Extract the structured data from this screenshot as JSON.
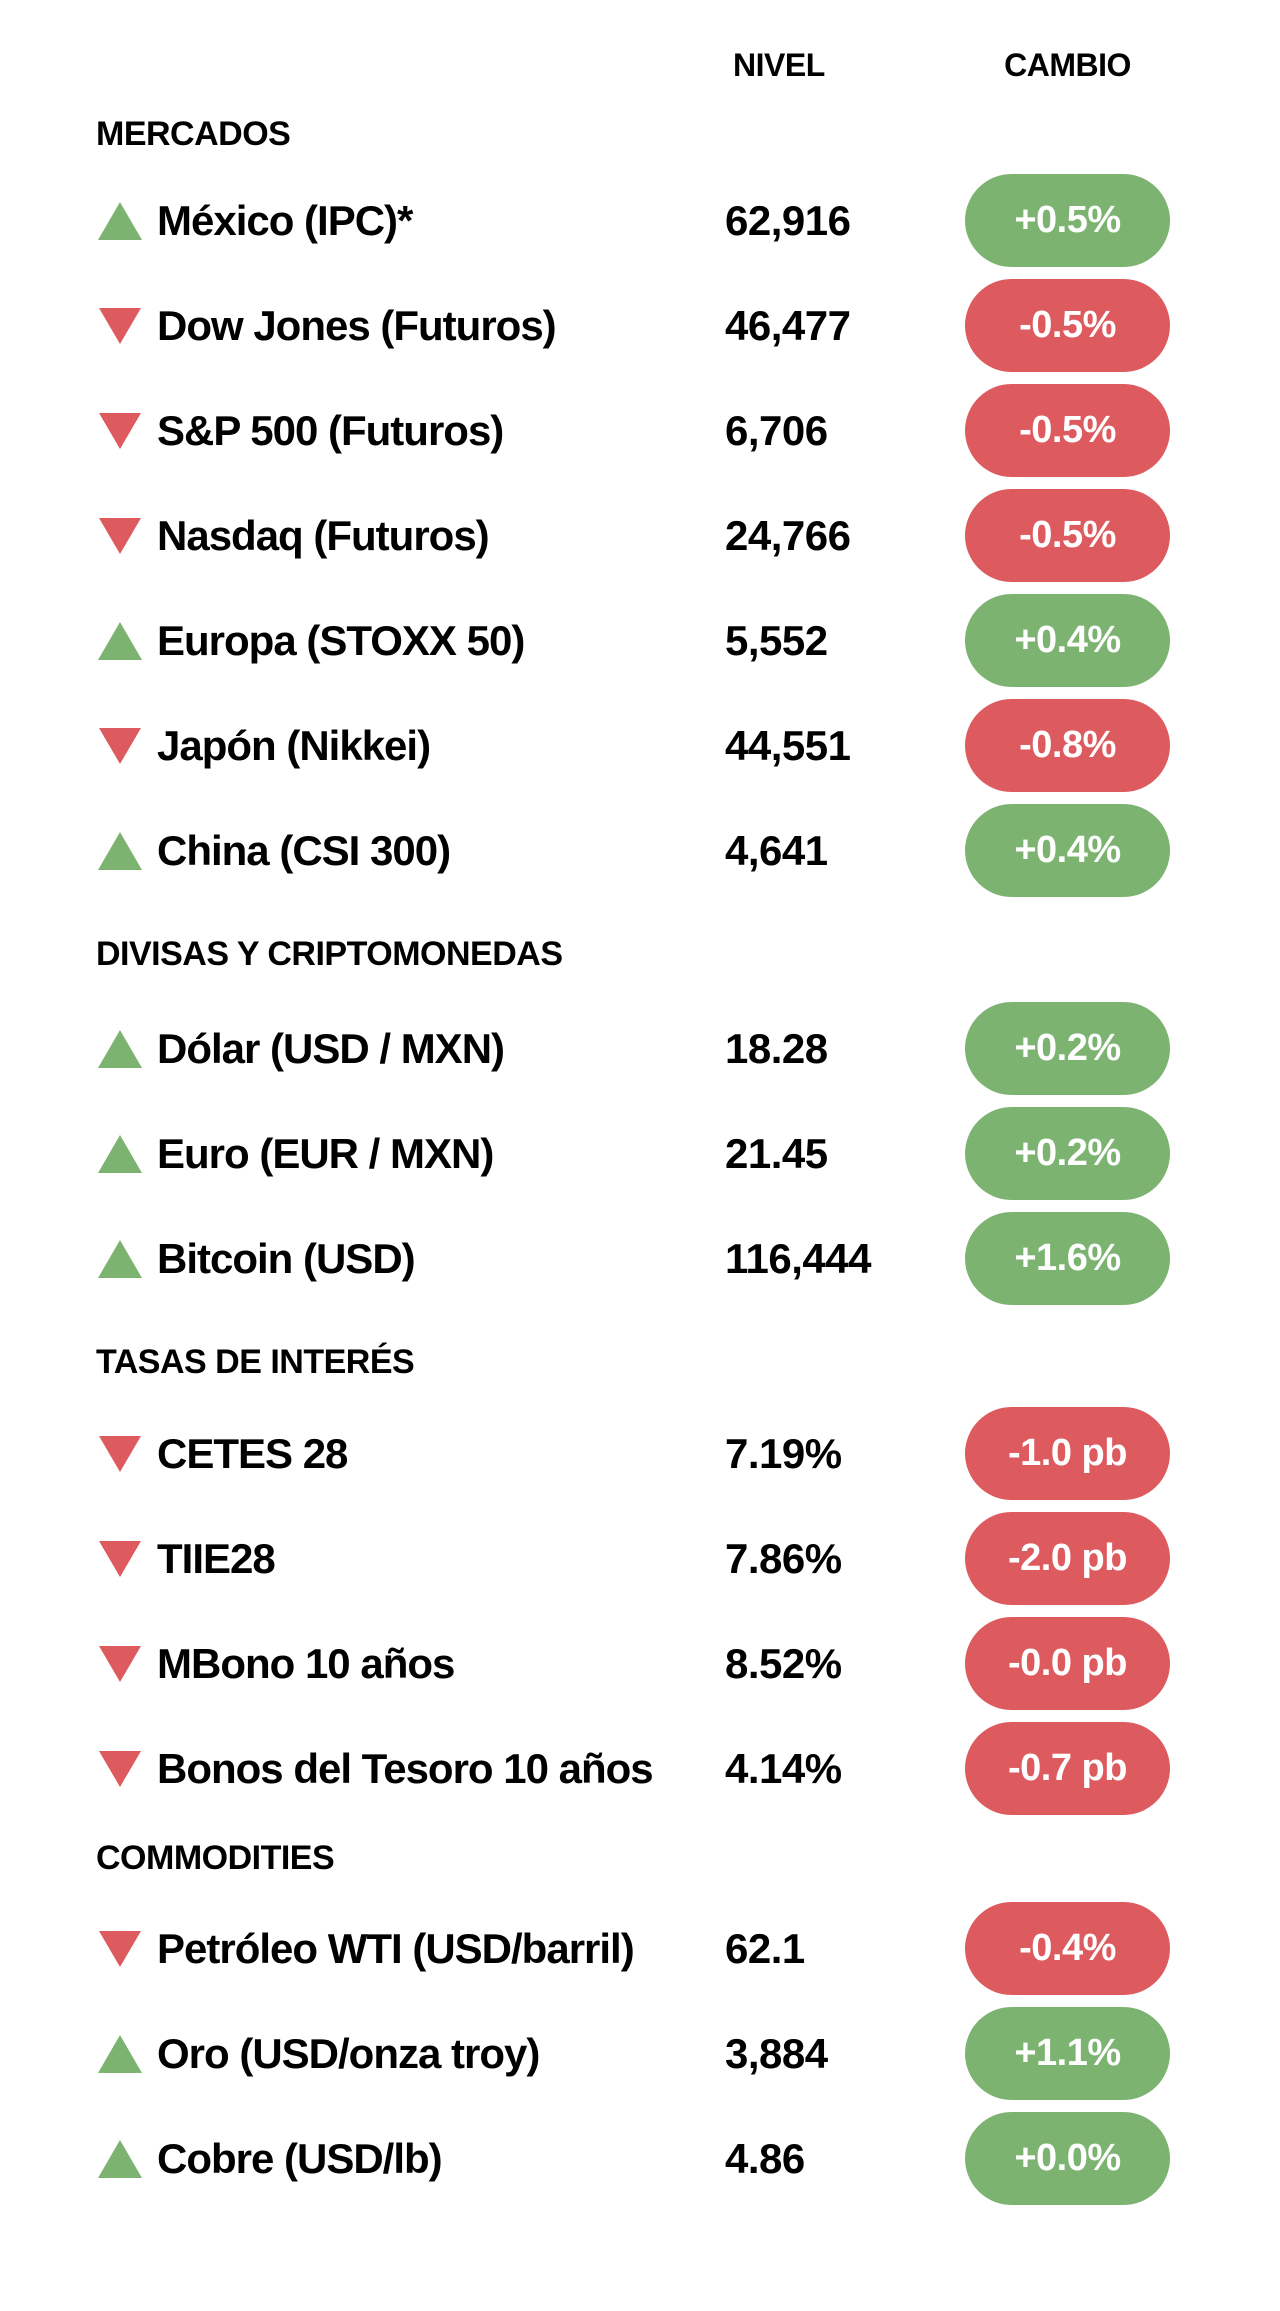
{
  "colors": {
    "positive": "#7cb371",
    "negative": "#dd5a5e",
    "badge_text": "#ffffff",
    "text": "#000000",
    "background": "#ffffff"
  },
  "chart_data": {
    "type": "table",
    "columns": {
      "level": "NIVEL",
      "change": "CAMBIO"
    },
    "sections": [
      {
        "title": "MERCADOS",
        "rows": [
          {
            "direction": "up",
            "name": "México (IPC)*",
            "level": "62,916",
            "change": "+0.5%"
          },
          {
            "direction": "down",
            "name": "Dow Jones (Futuros)",
            "level": "46,477",
            "change": "-0.5%"
          },
          {
            "direction": "down",
            "name": "S&P 500 (Futuros)",
            "level": "6,706",
            "change": "-0.5%"
          },
          {
            "direction": "down",
            "name": "Nasdaq (Futuros)",
            "level": "24,766",
            "change": "-0.5%"
          },
          {
            "direction": "up",
            "name": "Europa (STOXX 50)",
            "level": "5,552",
            "change": "+0.4%"
          },
          {
            "direction": "down",
            "name": "Japón (Nikkei)",
            "level": "44,551",
            "change": "-0.8%"
          },
          {
            "direction": "up",
            "name": "China (CSI 300)",
            "level": "4,641",
            "change": "+0.4%"
          }
        ]
      },
      {
        "title": "DIVISAS Y CRIPTOMONEDAS",
        "rows": [
          {
            "direction": "up",
            "name": "Dólar (USD / MXN)",
            "level": "18.28",
            "change": "+0.2%"
          },
          {
            "direction": "up",
            "name": "Euro (EUR / MXN)",
            "level": "21.45",
            "change": "+0.2%"
          },
          {
            "direction": "up",
            "name": "Bitcoin (USD)",
            "level": "116,444",
            "change": "+1.6%"
          }
        ]
      },
      {
        "title": "TASAS DE INTERÉS",
        "rows": [
          {
            "direction": "down",
            "name": "CETES 28",
            "level": "7.19%",
            "change": "-1.0 pb"
          },
          {
            "direction": "down",
            "name": "TIIE28",
            "level": "7.86%",
            "change": "-2.0 pb"
          },
          {
            "direction": "down",
            "name": "MBono 10 años",
            "level": "8.52%",
            "change": "-0.0 pb"
          },
          {
            "direction": "down",
            "name": "Bonos del Tesoro 10 años",
            "level": "4.14%",
            "change": "-0.7 pb"
          }
        ]
      },
      {
        "title": "COMMODITIES",
        "rows": [
          {
            "direction": "down",
            "name": "Petróleo WTI (USD/barril)",
            "level": "62.1",
            "change": "-0.4%"
          },
          {
            "direction": "up",
            "name": "Oro (USD/onza troy)",
            "level": "3,884",
            "change": "+1.1%"
          },
          {
            "direction": "up",
            "name": "Cobre (USD/lb)",
            "level": "4.86",
            "change": "+0.0%"
          }
        ]
      }
    ]
  }
}
